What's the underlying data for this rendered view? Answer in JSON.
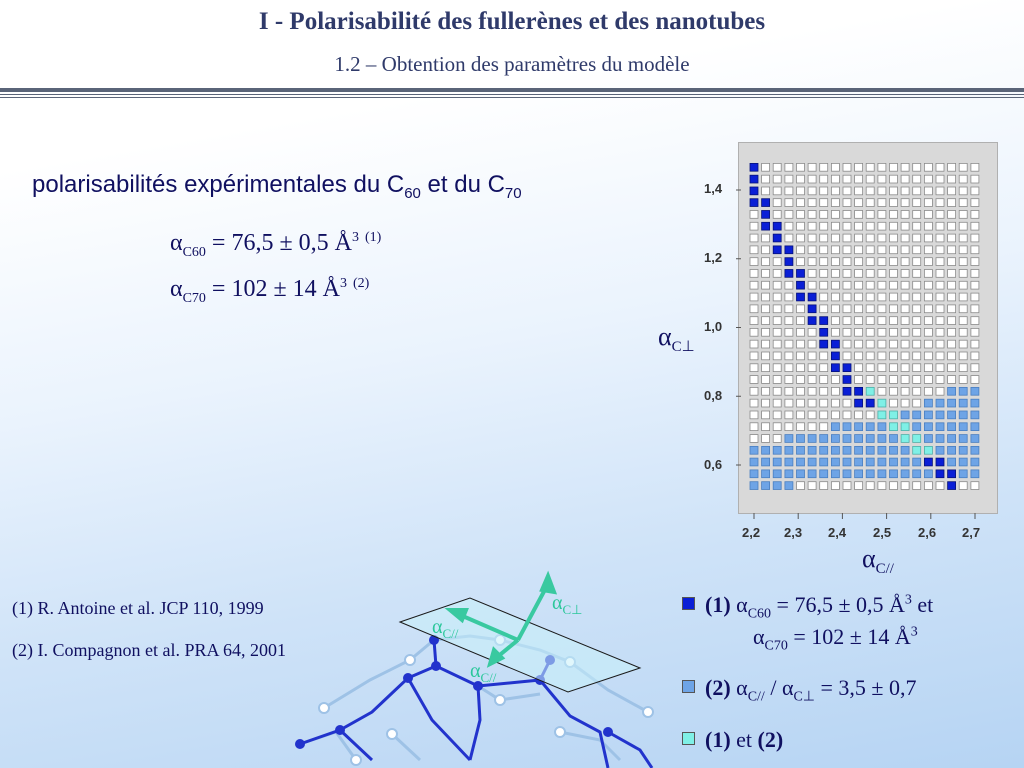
{
  "header": {
    "title": "I  - Polarisabilité des fullerènes et des nanotubes",
    "subtitle": "1.2 – Obtention des paramètres du modèle"
  },
  "heading": {
    "text": "polarisabilités expérimentales du C",
    "sub1": "60",
    "mid": " et du C",
    "sub2": "70"
  },
  "formulas": [
    {
      "symbol": "α",
      "sub": "C60",
      "eq": " = ",
      "value": "76,5 ± 0,5 Å",
      "power": "3",
      "ref": "(1)"
    },
    {
      "symbol": "α",
      "sub": "C70",
      "eq": "  = ",
      "value": "102 ± 14 Å",
      "power": "3",
      "ref": "(2)"
    }
  ],
  "references": [
    "(1)  R. Antoine et al. JCP 110, 1999",
    "(2)  I. Compagnon et al. PRA 64, 2001"
  ],
  "chart_data": {
    "type": "heatmap",
    "xlabel_symbol": "α",
    "xlabel_sub": "C//",
    "ylabel_symbol": "α",
    "ylabel_sub": "C⊥",
    "x_ticks": [
      "2,2",
      "2,3",
      "2,4",
      "2,5",
      "2,6",
      "2,7"
    ],
    "y_ticks": [
      "1,4",
      "1,2",
      "1,0",
      "0,8",
      "0,6"
    ],
    "x_tick_values": [
      2.2,
      2.3,
      2.4,
      2.5,
      2.6,
      2.7
    ],
    "y_tick_values": [
      1.4,
      1.2,
      1.0,
      0.8,
      0.6
    ],
    "xlim": [
      2.19,
      2.725
    ],
    "ylim": [
      0.5,
      1.5
    ],
    "grid": {
      "columns": 20,
      "rows": 28,
      "x0": 2.2,
      "y0": 0.54,
      "dx": 0.0263,
      "dy": 0.0343
    },
    "categories": [
      {
        "name": "(1)",
        "color": "#0a1fd6"
      },
      {
        "name": "(2)",
        "color": "#6ea4e6"
      },
      {
        "name": "(1) et (2)",
        "color": "#7ff0e6"
      }
    ],
    "series_1_cells": [
      [
        0,
        27
      ],
      [
        0,
        26
      ],
      [
        0,
        25
      ],
      [
        0,
        24
      ],
      [
        1,
        24
      ],
      [
        1,
        23
      ],
      [
        1,
        22
      ],
      [
        2,
        22
      ],
      [
        2,
        21
      ],
      [
        2,
        20
      ],
      [
        3,
        20
      ],
      [
        3,
        19
      ],
      [
        3,
        18
      ],
      [
        4,
        18
      ],
      [
        4,
        17
      ],
      [
        4,
        16
      ],
      [
        5,
        16
      ],
      [
        5,
        15
      ],
      [
        5,
        14
      ],
      [
        6,
        14
      ],
      [
        6,
        13
      ],
      [
        6,
        12
      ],
      [
        7,
        12
      ],
      [
        7,
        11
      ],
      [
        7,
        10
      ],
      [
        8,
        10
      ],
      [
        8,
        9
      ],
      [
        8,
        8
      ],
      [
        9,
        8
      ],
      [
        9,
        7
      ],
      [
        10,
        7
      ],
      [
        15,
        2
      ],
      [
        16,
        2
      ],
      [
        16,
        1
      ],
      [
        17,
        1
      ],
      [
        17,
        0
      ]
    ],
    "series_2_rect": {
      "c0": 0,
      "c1": 19,
      "r0": 0,
      "r1": 8
    },
    "series_3_cells": [
      [
        10,
        8
      ],
      [
        10,
        7
      ],
      [
        11,
        7
      ],
      [
        11,
        6
      ],
      [
        12,
        6
      ],
      [
        12,
        5
      ],
      [
        13,
        5
      ],
      [
        13,
        4
      ],
      [
        14,
        4
      ],
      [
        14,
        3
      ],
      [
        15,
        3
      ]
    ]
  },
  "legend": [
    {
      "key": "(1)",
      "color": "#0a1fd6",
      "symbol1": "α",
      "sub1": "C60",
      "value1": " = 76,5 ± 0,5 Å",
      "power1": "3",
      "tail": "  et",
      "symbol2": "α",
      "sub2": "C70",
      "value2": " = 102 ± 14 Å",
      "power2": "3"
    },
    {
      "key": "(2)",
      "color": "#6ea4e6",
      "symbol1": "α",
      "sub1": "C//",
      "slash": " / ",
      "symbol2": "α",
      "sub2": "C⊥",
      "value": "  = 3,5 ± 0,7"
    },
    {
      "key": "(1)",
      "color": "#7ff0e6",
      "mid": "  et  ",
      "key2": "(2)"
    }
  ],
  "molecule_labels": [
    {
      "symbol": "α",
      "sub": "C⊥"
    },
    {
      "symbol": "α",
      "sub": "C//"
    },
    {
      "symbol": "α",
      "sub": "C//"
    }
  ]
}
